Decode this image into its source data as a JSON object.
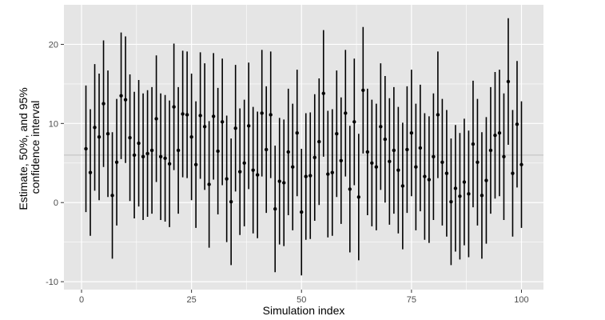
{
  "chart_data": {
    "type": "errorbar",
    "title": "",
    "xlabel": "Simulation index",
    "ylabel": "Estimate, 50%, and 95%",
    "ylabel_line2": "confidence interval",
    "xlim": [
      -4,
      105
    ],
    "ylim": [
      -11,
      25
    ],
    "x_ticks": [
      0,
      25,
      50,
      75,
      100
    ],
    "x_tick_labels": [
      "0",
      "25",
      "50",
      "75",
      "100"
    ],
    "y_ticks": [
      -10,
      0,
      10,
      20
    ],
    "y_tick_labels": [
      "-10",
      "0",
      "10",
      "20"
    ],
    "reference_line": 6,
    "grid": true,
    "colors": {
      "panel": "#e5e5e5",
      "grid": "#ffffff",
      "marks": "#000000",
      "reference_line": "#bfbfbf"
    },
    "x": [
      1,
      2,
      3,
      4,
      5,
      6,
      7,
      8,
      9,
      10,
      11,
      12,
      13,
      14,
      15,
      16,
      17,
      18,
      19,
      20,
      21,
      22,
      23,
      24,
      25,
      26,
      27,
      28,
      29,
      30,
      31,
      32,
      33,
      34,
      35,
      36,
      37,
      38,
      39,
      40,
      41,
      42,
      43,
      44,
      45,
      46,
      47,
      48,
      49,
      50,
      51,
      52,
      53,
      54,
      55,
      56,
      57,
      58,
      59,
      60,
      61,
      62,
      63,
      64,
      65,
      66,
      67,
      68,
      69,
      70,
      71,
      72,
      73,
      74,
      75,
      76,
      77,
      78,
      79,
      80,
      81,
      82,
      83,
      84,
      85,
      86,
      87,
      88,
      89,
      90,
      91,
      92,
      93,
      94,
      95,
      96,
      97,
      98,
      99,
      100
    ],
    "estimate": [
      6.8,
      3.8,
      9.5,
      8.3,
      12.5,
      8.7,
      0.9,
      5.1,
      13.5,
      13.0,
      8.2,
      6.0,
      7.5,
      5.8,
      6.2,
      6.6,
      10.6,
      5.8,
      5.6,
      4.9,
      12.1,
      6.6,
      11.2,
      11.1,
      8.3,
      4.8,
      11.0,
      9.6,
      2.3,
      10.9,
      6.5,
      10.2,
      3.0,
      0.1,
      9.4,
      3.9,
      5.0,
      9.7,
      4.1,
      3.5,
      11.3,
      6.7,
      11.1,
      -0.8,
      2.7,
      2.5,
      6.4,
      4.5,
      8.8,
      -1.2,
      3.3,
      3.4,
      5.7,
      7.7,
      13.8,
      3.6,
      3.8,
      8.7,
      5.3,
      11.3,
      1.7,
      10.2,
      0.7,
      14.2,
      6.4,
      5.0,
      4.5,
      9.6,
      8.0,
      5.2,
      6.6,
      4.1,
      2.1,
      6.7,
      8.8,
      4.5,
      6.9,
      3.3,
      2.9,
      5.8,
      11.1,
      5.1,
      3.7,
      0.1,
      1.8,
      0.8,
      2.6,
      1.1,
      7.4,
      5.1,
      0.9,
      2.8,
      6.6,
      8.5,
      8.8,
      5.8,
      15.3,
      3.7,
      9.9,
      4.8
    ],
    "lower95": [
      -1.2,
      -4.2,
      1.5,
      0.3,
      4.5,
      0.7,
      -7.1,
      -2.9,
      5.5,
      5.0,
      0.2,
      -2.0,
      -0.5,
      -2.2,
      -1.8,
      -1.4,
      2.6,
      -2.2,
      -2.4,
      -3.1,
      4.1,
      -1.4,
      3.2,
      3.1,
      0.3,
      -3.2,
      3.0,
      1.6,
      -5.7,
      2.9,
      -1.5,
      2.2,
      -5.0,
      -7.9,
      1.4,
      -4.1,
      -3.0,
      1.7,
      -3.9,
      -4.5,
      3.3,
      -1.3,
      3.1,
      -8.8,
      -5.3,
      -5.5,
      -1.6,
      -3.5,
      0.8,
      -9.2,
      -4.7,
      -4.6,
      -2.3,
      -0.3,
      5.8,
      -4.4,
      -4.2,
      0.7,
      -2.7,
      3.3,
      -6.3,
      2.2,
      -7.3,
      6.2,
      -1.6,
      -3.0,
      -3.5,
      1.6,
      0.0,
      -2.8,
      -1.4,
      -3.9,
      -5.9,
      -1.3,
      0.8,
      -3.5,
      -1.1,
      -4.7,
      -5.1,
      -2.2,
      3.1,
      -2.9,
      -4.3,
      -7.9,
      -6.2,
      -7.2,
      -5.4,
      -6.9,
      -0.6,
      -2.9,
      -7.1,
      -5.2,
      -1.4,
      0.5,
      0.8,
      -2.2,
      7.3,
      -4.3,
      1.9,
      -3.2
    ],
    "upper95": [
      14.8,
      11.8,
      17.5,
      16.3,
      20.5,
      16.7,
      8.9,
      13.1,
      21.5,
      21.0,
      16.2,
      14.0,
      15.5,
      13.8,
      14.2,
      14.6,
      18.6,
      13.8,
      13.6,
      12.9,
      20.1,
      14.6,
      19.2,
      19.1,
      16.3,
      12.8,
      19.0,
      17.6,
      10.3,
      18.9,
      14.5,
      18.2,
      11.0,
      8.1,
      17.4,
      11.9,
      13.0,
      17.7,
      12.1,
      11.5,
      19.3,
      14.7,
      19.1,
      7.2,
      10.7,
      10.5,
      14.4,
      12.5,
      16.8,
      6.8,
      11.3,
      11.4,
      13.7,
      15.7,
      21.8,
      11.6,
      11.8,
      16.7,
      13.3,
      19.3,
      9.7,
      18.2,
      8.7,
      22.2,
      14.4,
      13.0,
      12.5,
      17.6,
      16.0,
      13.2,
      14.6,
      12.1,
      10.1,
      14.7,
      16.8,
      12.5,
      14.9,
      11.3,
      10.9,
      13.8,
      19.1,
      13.1,
      11.7,
      8.1,
      9.8,
      8.8,
      10.6,
      9.1,
      15.4,
      13.1,
      8.9,
      10.8,
      14.6,
      16.5,
      16.8,
      13.8,
      23.3,
      11.7,
      17.9,
      12.8
    ]
  }
}
